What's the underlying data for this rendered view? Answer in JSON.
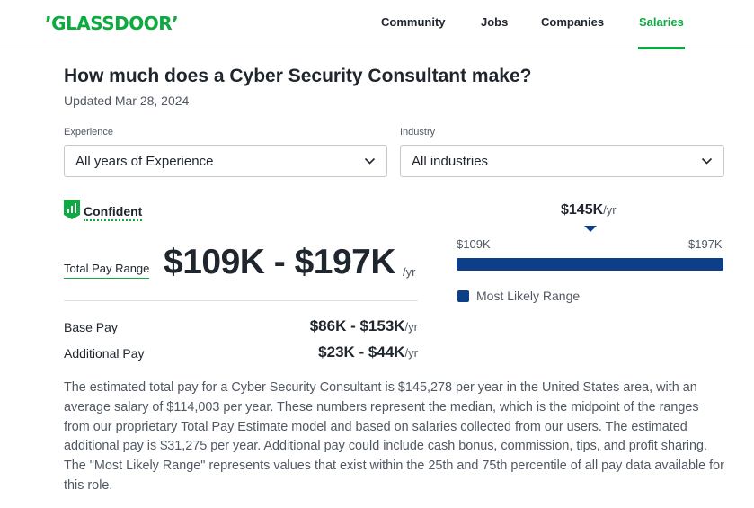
{
  "header": {
    "logo": "’GLASSDOOR’",
    "nav": [
      {
        "label": "Community"
      },
      {
        "label": "Jobs"
      },
      {
        "label": "Companies"
      },
      {
        "label": "Salaries",
        "active": true
      }
    ]
  },
  "page": {
    "title": "How much does a Cyber Security Consultant make?",
    "updated": "Updated Mar 28, 2024"
  },
  "filters": {
    "experience": {
      "label": "Experience",
      "value": "All years of Experience"
    },
    "industry": {
      "label": "Industry",
      "value": "All industries"
    }
  },
  "confidence": {
    "label": "Confident",
    "icon": "signal-bars-icon"
  },
  "pay": {
    "total_label": "Total Pay Range",
    "total_range": "$109K - $197K",
    "unit": "/yr",
    "base_label": "Base Pay",
    "base_range": "$86K - $153K",
    "additional_label": "Additional Pay",
    "additional_range": "$23K - $44K"
  },
  "range_chart": {
    "median": "$145K",
    "min_label": "$109K",
    "max_label": "$197K",
    "legend": "Most Likely Range"
  },
  "description": "The estimated total pay for a Cyber Security Consultant is $145,278 per year in the United States area, with an average salary of $114,003 per year. These numbers represent the median, which is the midpoint of the ranges from our proprietary Total Pay Estimate model and based on salaries collected from our users. The estimated additional pay is $31,275 per year. Additional pay could include cash bonus, commission, tips, and profit sharing. The \"Most Likely Range\" represents values that exist within the 25th and 75th percentile of all pay data available for this role.",
  "colors": {
    "brand": "#0caa41",
    "bar": "#0d3f89",
    "text": "#20262e",
    "muted": "#505863"
  }
}
